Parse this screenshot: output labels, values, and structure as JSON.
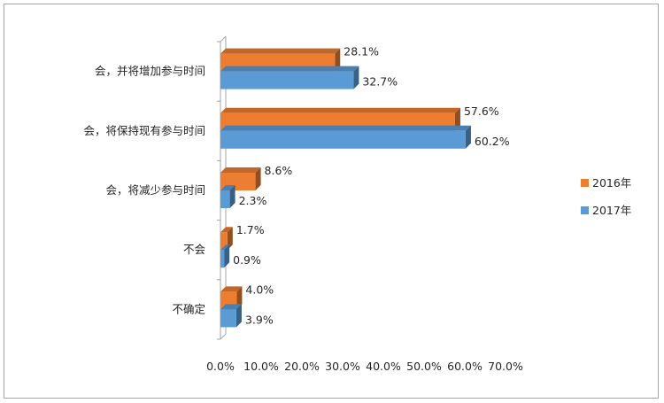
{
  "chart_data": {
    "type": "bar",
    "orientation": "horizontal",
    "style": "3d",
    "categories": [
      "会，并将增加参与时间",
      "会，将保持现有参与时间",
      "会，将减少参与时间",
      "不会",
      "不确定"
    ],
    "series": [
      {
        "name": "2016年",
        "color": "#ED7D31",
        "values": [
          28.1,
          57.6,
          8.6,
          1.7,
          4.0
        ],
        "labels": [
          "28.1%",
          "57.6%",
          "8.6%",
          "1.7%",
          "4.0%"
        ]
      },
      {
        "name": "2017年",
        "color": "#5B9BD5",
        "values": [
          32.7,
          60.2,
          2.3,
          0.9,
          3.9
        ],
        "labels": [
          "32.7%",
          "60.2%",
          "2.3%",
          "0.9%",
          "3.9%"
        ]
      }
    ],
    "xlim": [
      0,
      70
    ],
    "xticks": [
      "0.0%",
      "10.0%",
      "20.0%",
      "30.0%",
      "40.0%",
      "50.0%",
      "60.0%",
      "70.0%"
    ],
    "grid": false,
    "legend": "right"
  }
}
